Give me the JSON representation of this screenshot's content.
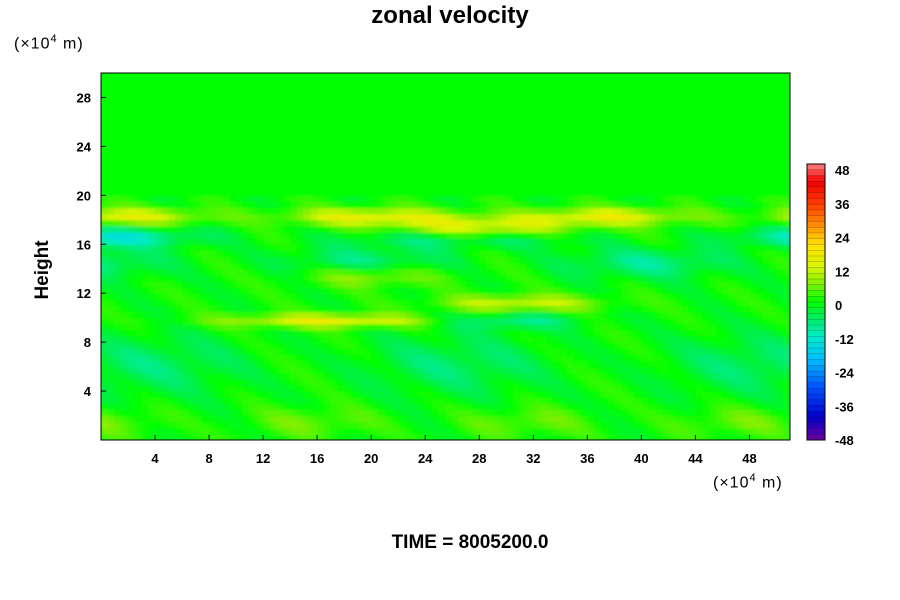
{
  "chart_data": {
    "type": "heatmap",
    "title": "zonal velocity",
    "ylabel": "Height",
    "xlabel": "",
    "x_unit": {
      "prefix": "(×10",
      "exp": "4",
      "suffix": " m)"
    },
    "y_unit": {
      "prefix": "(×10",
      "exp": "4",
      "suffix": " m)"
    },
    "xlim": [
      0,
      51
    ],
    "ylim": [
      0,
      30
    ],
    "x_ticks": [
      "4",
      "8",
      "12",
      "16",
      "20",
      "24",
      "28",
      "32",
      "36",
      "40",
      "44",
      "48"
    ],
    "y_ticks": [
      "4",
      "8",
      "12",
      "16",
      "20",
      "24",
      "28"
    ],
    "colorbar": {
      "range": [
        -48,
        48
      ],
      "tick_labels": [
        "48",
        "36",
        "24",
        "12",
        "0",
        "-12",
        "-24",
        "-36",
        "-48"
      ]
    },
    "footer": "TIME = 8005200.0"
  }
}
